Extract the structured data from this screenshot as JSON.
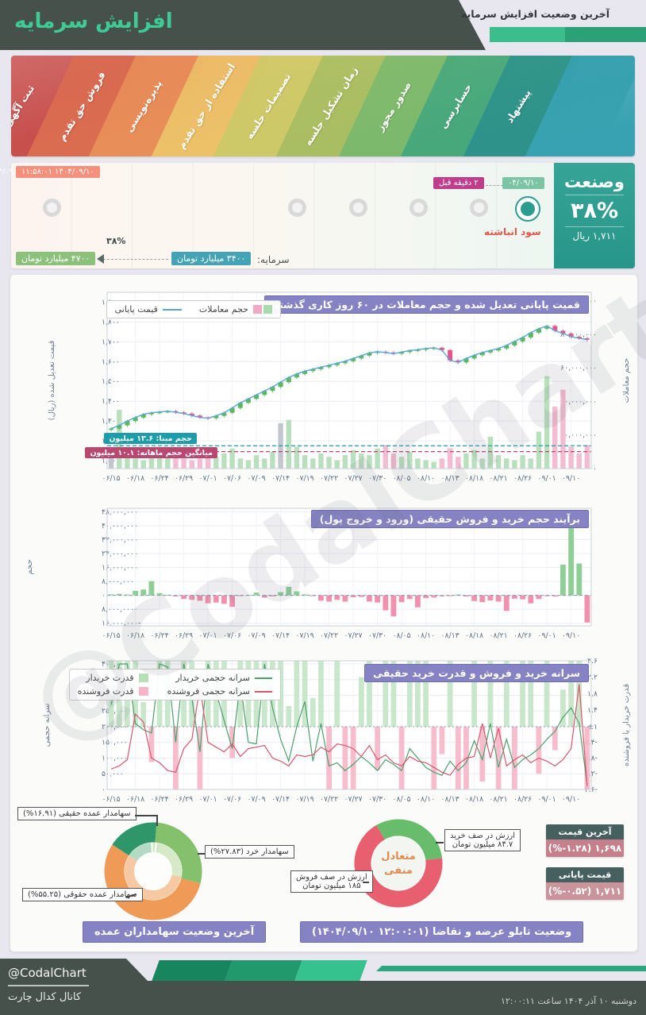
{
  "header": {
    "title": "افزایش سرمایه",
    "subtitle": "آخرین وضعیت افزایش سرمایه"
  },
  "ribbon": {
    "steps": [
      {
        "label": "ثبت آگهی",
        "color": "#c7504d"
      },
      {
        "label": "فروش حق تقدم",
        "color": "#da6c50"
      },
      {
        "label": "پذیره‌نویسی",
        "color": "#e88e58"
      },
      {
        "label": "استفاده از حق تقدم",
        "color": "#ecc168"
      },
      {
        "label": "تصمیمات جلسه",
        "color": "#cdc968"
      },
      {
        "label": "زمان تشکیل جلسه",
        "color": "#a9bd62"
      },
      {
        "label": "صدور مجوز",
        "color": "#7cb96d"
      },
      {
        "label": "حسابرسی",
        "color": "#47a87c"
      },
      {
        "label": "پیشنهاد",
        "color": "#2e928b"
      },
      {
        "label": "",
        "color": "#38a2b2"
      }
    ]
  },
  "timeline": {
    "datetime": "۱۴۰۴/۰۹/۱۰ ۱۱:۵۸:۰۱",
    "active_date": "۰۴/۰۹/۱۰",
    "ago": "۲ دقیقه قبل",
    "stage": "سود انباشته",
    "capital_label": "سرمایه:",
    "capital_from": "۳۴۰۰ میلیارد تومان",
    "capital_to": "۴۷۰۰ میلیارد تومان",
    "arrow_pct": "۳۸%",
    "ticker": {
      "name": "وصنعت",
      "pct": "۳۸%",
      "price": "۱,۷۱۱ ریال"
    }
  },
  "watermark": "@CodalChart",
  "chart_data": [
    {
      "type": "candlestick",
      "title": "قمیت پایانی تعدیل شده و حجم معاملات در ۶۰ روز کاری گذشته",
      "legend": [
        {
          "label": "قیمت پایانی",
          "swatch": "line",
          "color": "#57a7d8"
        },
        {
          "label": "حجم معاملات",
          "swatch": "boxes",
          "colors": [
            "#a9d9af",
            "#f2a9c4"
          ]
        }
      ],
      "ylabel_left": "قیمت تعدیل شده (ریال)",
      "ylabel_right": "حجم معاملات",
      "ylim_left": [
        1060,
        1950
      ],
      "yticks_left": {
        "values": [
          1900,
          1800,
          1700,
          1600,
          1500,
          1400,
          1300,
          1200,
          1100
        ],
        "labels": [
          "۱,۹۰۰",
          "۱,۸۰۰",
          "۱,۷۰۰",
          "۱,۶۰۰",
          "۱,۵۰۰",
          "۱,۴۰۰",
          "۱,۳۰۰",
          "۱,۲۰۰",
          "۱,۱۰۰"
        ]
      },
      "ylim_right_m": [
        0,
        105
      ],
      "yticks_right": {
        "values": [
          100,
          80,
          60,
          40,
          20,
          0
        ],
        "labels": [
          "۱۰۰,۰۰۰,۰۰۰",
          "۸۰,۰۰۰,۰۰۰",
          "۶۰,۰۰۰,۰۰۰",
          "۴۰,۰۰۰,۰۰۰",
          "۲۰,۰۰۰,۰۰۰",
          "۰"
        ]
      },
      "x_labels": [
        "۰۶/۱۵",
        "۰۶/۱۸",
        "۰۶/۲۴",
        "۰۶/۲۹",
        "۰۷/۰۱",
        "۰۷/۰۶",
        "۰۷/۰۹",
        "۰۷/۱۴",
        "۰۷/۱۹",
        "۰۷/۲۲",
        "۰۷/۲۷",
        "۰۷/۳۰",
        "۰۸/۰۵",
        "۰۸/۱۰",
        "۰۸/۱۳",
        "۰۸/۱۸",
        "۰۸/۲۱",
        "۰۸/۲۶",
        "۰۹/۰۱",
        "۰۹/۱۰"
      ],
      "label_every": 3,
      "closes": [
        1262,
        1278,
        1300,
        1318,
        1334,
        1342,
        1346,
        1350,
        1344,
        1338,
        1328,
        1318,
        1314,
        1326,
        1342,
        1366,
        1392,
        1412,
        1432,
        1452,
        1472,
        1496,
        1520,
        1538,
        1552,
        1562,
        1572,
        1582,
        1592,
        1602,
        1616,
        1630,
        1644,
        1650,
        1646,
        1640,
        1648,
        1656,
        1660,
        1666,
        1670,
        1658,
        1606,
        1596,
        1616,
        1632,
        1646,
        1656,
        1666,
        1682,
        1702,
        1722,
        1746,
        1766,
        1780,
        1756,
        1742,
        1726,
        1718,
        1711
      ],
      "volumes_m": [
        9,
        35,
        7,
        6,
        5,
        8,
        12,
        9,
        7,
        6,
        5,
        6,
        8,
        7,
        9,
        12,
        6,
        5,
        8,
        6,
        10,
        27,
        29,
        13,
        8,
        6,
        9,
        7,
        5,
        8,
        11,
        9,
        8,
        12,
        14,
        9,
        7,
        10,
        6,
        5,
        4,
        6,
        12,
        7,
        9,
        11,
        6,
        19,
        8,
        6,
        5,
        8,
        6,
        22,
        55,
        37,
        47,
        13,
        9,
        14
      ],
      "gray_volume_idx": [
        0,
        21
      ],
      "base_volume": {
        "value_m": 13.6,
        "label": "حجم مبنا: ۱۳.۶ میلیون",
        "color": "#1d9daa"
      },
      "avg_volume": {
        "value_m": 10.1,
        "label": "میانگین حجم ماهانه: ۱۰.۱ میلیون",
        "color": "#b8486f"
      }
    },
    {
      "type": "bar",
      "title": "برآیند حجم خرید و فروش حقیقی (ورود و خروج پول)",
      "ylabel": "حجم",
      "ylim_m": [
        -17.5,
        50
      ],
      "yticks": {
        "values": [
          48,
          40,
          32,
          24,
          16,
          8,
          0,
          -8,
          -16
        ],
        "labels": [
          "۴۸,۰۰۰,۰۰۰",
          "۴۰,۰۰۰,۰۰۰",
          "۳۲,۰۰۰,۰۰۰",
          "۲۴,۰۰۰,۰۰۰",
          "۱۶,۰۰۰,۰۰۰",
          "۸,۰۰۰,۰۰۰",
          "۰",
          "-۸,۰۰۰,۰۰۰",
          "-۱۶,۰۰۰,۰۰۰"
        ]
      },
      "x_labels": [
        "۰۶/۱۵",
        "۰۶/۱۸",
        "۰۶/۲۴",
        "۰۶/۲۹",
        "۰۷/۰۱",
        "۰۷/۰۶",
        "۰۷/۰۹",
        "۰۷/۱۴",
        "۰۷/۱۹",
        "۰۷/۲۲",
        "۰۷/۲۷",
        "۰۷/۳۰",
        "۰۸/۰۵",
        "۰۸/۱۰",
        "۰۸/۱۳",
        "۰۸/۱۸",
        "۰۸/۲۱",
        "۰۸/۲۶",
        "۰۹/۰۱",
        "۰۹/۱۰"
      ],
      "label_every": 3,
      "values_m": [
        0.6,
        0.9,
        0.5,
        2.6,
        3.4,
        8.2,
        1.3,
        0.4,
        -0.6,
        -2.1,
        -2.6,
        -3.1,
        -4.6,
        -4.1,
        -4.9,
        -6.6,
        -0.4,
        0.3,
        1.6,
        -1.3,
        -0.6,
        1.9,
        4.9,
        2.3,
        0.6,
        -0.3,
        -3.1,
        -3.6,
        -2.6,
        -3.6,
        -1.1,
        -0.9,
        -3.6,
        -4.1,
        -8.6,
        -12.1,
        -3.9,
        -2.1,
        -6.9,
        -1.6,
        -1.3,
        -0.6,
        -0.4,
        0.5,
        -0.7,
        -3.3,
        -3.9,
        -2.9,
        -3.6,
        -8.9,
        -1.9,
        -2.3,
        -4.6,
        -2.1,
        -0.5,
        -0.7,
        17.6,
        39.2,
        18.3,
        -15.6
      ]
    },
    {
      "type": "bars+lines",
      "title": "سرانه خرید و فروش و قدرت خرید حقیقی",
      "legend": [
        {
          "label": "سرانه حجمی خریدار",
          "swatch": "line",
          "color": "#4ca06c"
        },
        {
          "label": "قدرت خریدار",
          "swatch": "box",
          "color": "#b7e0b9"
        },
        {
          "label": "سرانه حجمی فروشنده",
          "swatch": "line",
          "color": "#d9566d"
        },
        {
          "label": "قدرت فروشنده",
          "swatch": "box",
          "color": "#f6b6c8"
        }
      ],
      "ylabel_left": "سرانه حجمی",
      "ylabel_right": "قدرت خریدار یا فروشنده",
      "ylim_left_k": [
        0,
        410
      ],
      "yticks_left": {
        "values": [
          400,
          350,
          300,
          250,
          200,
          150,
          100,
          50,
          0
        ],
        "labels": [
          "۴۰۰,۰۰۰",
          "۳۵۰,۰۰۰",
          "۳۰۰,۰۰۰",
          "۲۵۰,۰۰۰",
          "۲۰۰,۰۰۰",
          "۱۵۰,۰۰۰",
          "۱۰۰,۰۰۰",
          "۵۰,۰۰۰",
          "۰"
        ]
      },
      "yticks_right": {
        "labels": [
          "۲.۶",
          "۲.۲",
          "۱.۸",
          "۱.۴",
          "±۱",
          "-۱.۴",
          "-۱.۸",
          "-۲.۲",
          "-۲.۶"
        ]
      },
      "x_labels": [
        "۰۶/۱۵",
        "۰۶/۱۸",
        "۰۶/۲۴",
        "۰۶/۲۹",
        "۰۷/۰۱",
        "۰۷/۰۶",
        "۰۷/۰۹",
        "۰۷/۱۴",
        "۰۷/۱۹",
        "۰۷/۲۲",
        "۰۷/۲۷",
        "۰۷/۳۰",
        "۰۸/۰۵",
        "۰۸/۱۰",
        "۰۸/۱۳",
        "۰۸/۱۸",
        "۰۸/۲۱",
        "۰۸/۲۶",
        "۰۹/۰۱",
        "۰۹/۱۰"
      ],
      "label_every": 3,
      "power": [
        2.6,
        2.6,
        2.6,
        2.6,
        1.6,
        -1.9,
        2.6,
        2.6,
        -2.6,
        2.6,
        2.6,
        -2.6,
        2.6,
        2.6,
        2.6,
        -1.8,
        2.6,
        2.6,
        2.6,
        2.6,
        2.6,
        2.6,
        1.5,
        2.6,
        2.6,
        1.7,
        2.6,
        -2.6,
        2.6,
        -2.6,
        -2.6,
        2.2,
        2.6,
        -2.1,
        2.6,
        2.6,
        -2.6,
        2.6,
        2.6,
        2.6,
        -2.6,
        -1.7,
        2.6,
        -2.6,
        -2.6,
        2.6,
        -2.4,
        2.6,
        -2.6,
        2.6,
        -2.6,
        2.6,
        2.6,
        -2.2,
        2.6,
        -1.6,
        1.9,
        2.6,
        2.6,
        -2.6
      ],
      "buyer_percapita_k": [
        270,
        400,
        400,
        210,
        190,
        180,
        400,
        390,
        150,
        400,
        290,
        120,
        400,
        310,
        220,
        130,
        340,
        150,
        145,
        400,
        260,
        160,
        90,
        200,
        280,
        90,
        210,
        75,
        85,
        60,
        80,
        105,
        85,
        60,
        95,
        80,
        60,
        130,
        100,
        70,
        55,
        45,
        90,
        60,
        85,
        155,
        95,
        210,
        70,
        160,
        70,
        95,
        110,
        130,
        160,
        185,
        230,
        260,
        210,
        15
      ],
      "seller_percapita_k": [
        65,
        75,
        95,
        240,
        215,
        100,
        85,
        60,
        55,
        130,
        160,
        330,
        150,
        135,
        120,
        145,
        105,
        130,
        135,
        140,
        100,
        90,
        75,
        110,
        105,
        110,
        135,
        120,
        145,
        140,
        130,
        105,
        140,
        95,
        110,
        85,
        75,
        105,
        90,
        85,
        70,
        55,
        45,
        80,
        100,
        105,
        210,
        100,
        195,
        75,
        95,
        110,
        85,
        100,
        90,
        75,
        95,
        130,
        335,
        10
      ]
    },
    {
      "type": "donut",
      "title": "آخرین وضعیت سهامداران عمده",
      "start_deg": -57,
      "segments": [
        {
          "name": "سهامدار عمده حقیقی",
          "pct": 16.91,
          "label": "سهامدار عمده حقیقی (۱۶.۹۱%)",
          "color": "#2e9668"
        },
        {
          "name": "سهامدار خرد",
          "pct": 27.83,
          "label": "سهامدار خرد (۲۷.۸۳%)",
          "color": "#85c06d"
        },
        {
          "name": "سهامدار عمده حقوقی",
          "pct": 55.25,
          "label": "سهامدار عمده حقوقی (۵۵.۲۵%)",
          "color": "#ef9a57"
        }
      ],
      "inner_segments": [
        {
          "value": 14.5,
          "color": "#b2dac4"
        },
        {
          "value": 1.1,
          "color": "#ffffff"
        },
        {
          "value": 1.4,
          "color": "#cde8c0"
        },
        {
          "value": 1.1,
          "color": "#ffffff"
        },
        {
          "value": 1.4,
          "color": "#cde8c0"
        },
        {
          "value": 24.5,
          "color": "#d6eac8"
        },
        {
          "value": 56,
          "color": "#f6c9a2"
        }
      ]
    },
    {
      "type": "donut",
      "title": "وضعیت تابلو عرضه و تقاضا (۱۲:۰۰:۰۱ ۱۴۰۴/۰۹/۱۰)",
      "start_deg": -30,
      "center_line1": "متعادل",
      "center_line2": "منفی",
      "segments": [
        {
          "label": "ارزش در صف خرید",
          "value_label": "۸۴.۷ میلیون تومان",
          "value": 84.7,
          "color": "#67bd6b"
        },
        {
          "label": "ارزش در صف فروش",
          "value_label": "۱۸۵ میلیون تومان",
          "value": 185,
          "color": "#e85f70"
        }
      ]
    }
  ],
  "prices": {
    "last": {
      "title": "آخرین قیمت",
      "value": "(%-۱.۲۸) ۱,۶۹۸",
      "header_color": "#46605f",
      "body_color": "#c5808b"
    },
    "close": {
      "title": "قیمت پایانی",
      "value": "(%-۰.۵۲) ۱,۷۱۱",
      "header_color": "#46605f",
      "body_color": "#c9949c"
    }
  },
  "footer": {
    "handle": "@CodalChart",
    "channel": "کانال کدال چارت",
    "datetime": "دوشنبه ۱۰ آذر ۱۴۰۴ ساعت ۱۲:۰۰:۱۱"
  }
}
